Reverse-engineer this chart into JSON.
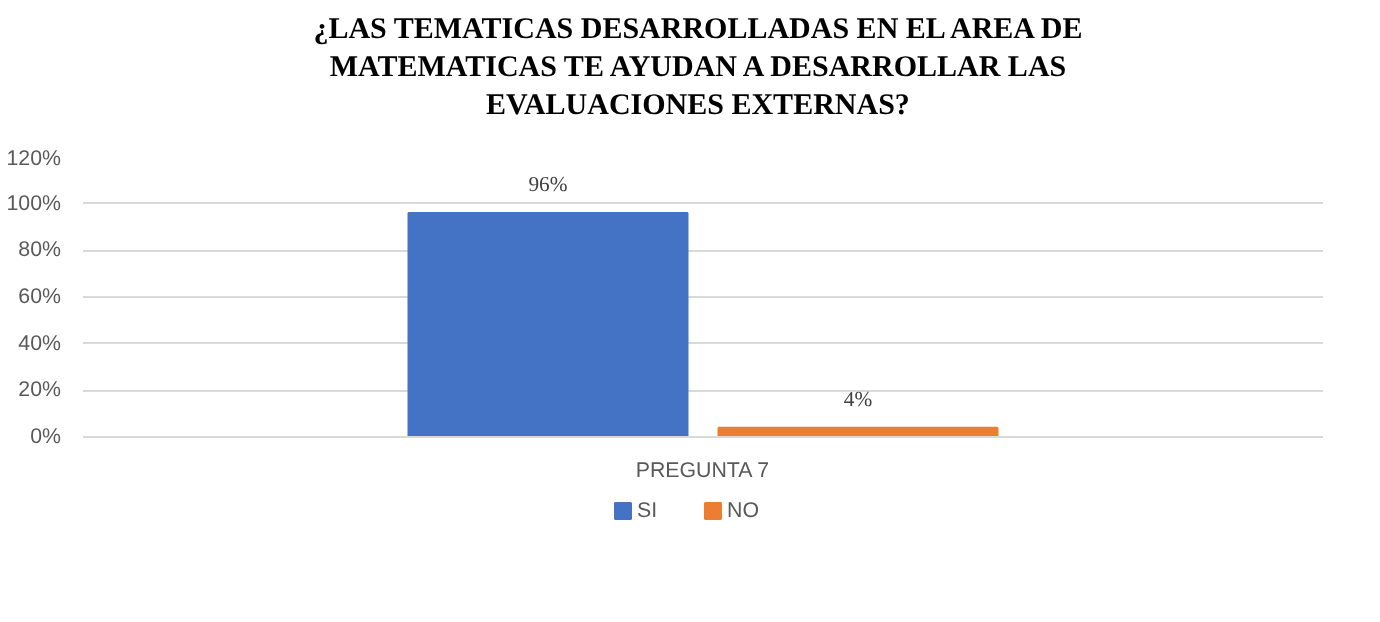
{
  "chart_data": {
    "type": "bar",
    "title": "¿LAS TEMATICAS DESARROLLADAS EN EL AREA DE MATEMATICAS TE AYUDAN A DESARROLLAR LAS EVALUACIONES EXTERNAS?",
    "categories": [
      "PREGUNTA 7"
    ],
    "series": [
      {
        "name": "SI",
        "color": "#4472c4",
        "values": [
          96
        ],
        "value_labels": [
          "96%"
        ]
      },
      {
        "name": "NO",
        "color": "#ed7d31",
        "values": [
          4
        ],
        "value_labels": [
          "4%"
        ]
      }
    ],
    "ylim": [
      0,
      120
    ],
    "yticks": [
      {
        "value": 0,
        "label": "0%"
      },
      {
        "value": 20,
        "label": "20%"
      },
      {
        "value": 40,
        "label": "40%"
      },
      {
        "value": 60,
        "label": "60%"
      },
      {
        "value": 80,
        "label": "80%"
      },
      {
        "value": 100,
        "label": "100%"
      },
      {
        "value": 120,
        "label": "120%"
      }
    ],
    "grid": "y",
    "legend": "bottom"
  }
}
